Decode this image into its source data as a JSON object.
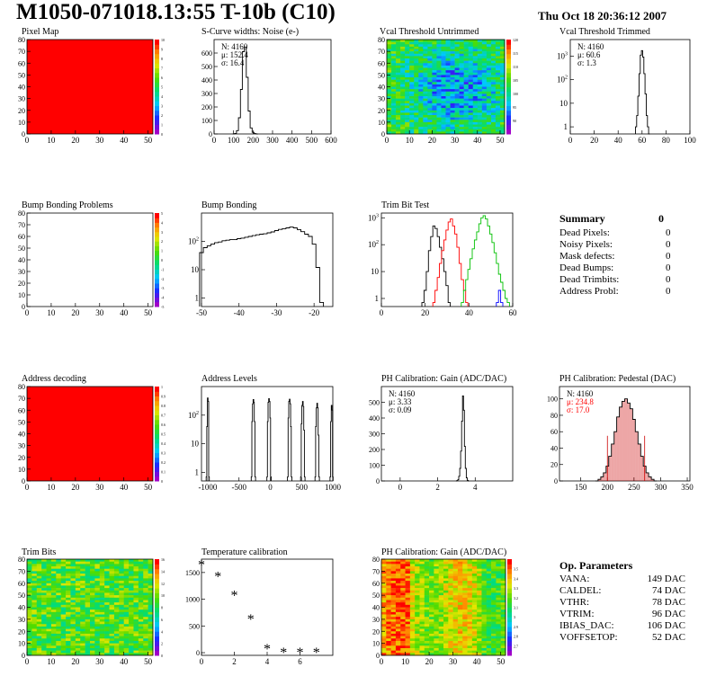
{
  "header": {
    "title": "M1050-071018.13:55 T-10b (C10)",
    "date": "Thu Oct 18 20:36:12 2007"
  },
  "summary": {
    "title": "Summary",
    "title_value": "0",
    "rows": [
      {
        "label": "Dead Pixels:",
        "value": "0"
      },
      {
        "label": "Noisy Pixels:",
        "value": "0"
      },
      {
        "label": "Mask defects:",
        "value": "0"
      },
      {
        "label": "Dead Bumps:",
        "value": "0"
      },
      {
        "label": "Dead Trimbits:",
        "value": "0"
      },
      {
        "label": "Address Probl:",
        "value": "0"
      }
    ]
  },
  "op_parameters": {
    "title": "Op. Parameters",
    "rows": [
      {
        "label": "VANA:",
        "value": "149 DAC"
      },
      {
        "label": "CALDEL:",
        "value": "74 DAC"
      },
      {
        "label": "VTHR:",
        "value": "78 DAC"
      },
      {
        "label": "VTRIM:",
        "value": "96 DAC"
      },
      {
        "label": "IBIAS_DAC:",
        "value": "106 DAC"
      },
      {
        "label": "VOFFSETOP:",
        "value": "52 DAC"
      }
    ]
  },
  "chart_data": [
    {
      "id": "pixel-map",
      "type": "heatmap",
      "title": "Pixel Map",
      "xlim": [
        0,
        52
      ],
      "ylim": [
        0,
        80
      ],
      "xticks": [
        0,
        10,
        20,
        30,
        40,
        50
      ],
      "yticks": [
        0,
        10,
        20,
        30,
        40,
        50,
        60,
        70,
        80
      ],
      "fill": "uniform-max",
      "zlim": [
        0,
        10
      ],
      "zticks": [
        0,
        1,
        2,
        3,
        4,
        5,
        6,
        7,
        8,
        9,
        10
      ],
      "palette": "rainbow"
    },
    {
      "id": "scurve-widths",
      "type": "histogram",
      "title": "S-Curve widths: Noise (e-)",
      "xlim": [
        0,
        600
      ],
      "ylim": [
        0,
        700
      ],
      "xticks": [
        0,
        100,
        200,
        300,
        400,
        500,
        600
      ],
      "yticks": [
        0,
        100,
        200,
        300,
        400,
        500,
        600
      ],
      "stats": [
        "N: 4160",
        "μ: 152.4",
        "σ: 16.4"
      ],
      "color": "#000000",
      "x": [
        100,
        110,
        120,
        130,
        140,
        150,
        160,
        170,
        180,
        190,
        200,
        210,
        220
      ],
      "values": [
        0,
        4,
        25,
        120,
        330,
        610,
        645,
        420,
        170,
        45,
        12,
        3,
        0
      ]
    },
    {
      "id": "vcal-untrimmed",
      "type": "heatmap",
      "title": "Vcal Threshold Untrimmed",
      "xlim": [
        0,
        52
      ],
      "ylim": [
        0,
        80
      ],
      "xticks": [
        0,
        10,
        20,
        30,
        40,
        50
      ],
      "yticks": [
        0,
        10,
        20,
        30,
        40,
        50,
        60,
        70,
        80
      ],
      "fill": "noise-untrimmed",
      "zlim": [
        85,
        120
      ],
      "zticks": [
        90,
        95,
        100,
        105,
        110,
        115,
        120
      ],
      "palette": "rainbow"
    },
    {
      "id": "vcal-trimmed",
      "type": "histogram",
      "title": "Vcal Threshold Trimmed",
      "log_y": true,
      "xlim": [
        0,
        100
      ],
      "ylim": [
        0.5,
        5000
      ],
      "xticks": [
        0,
        20,
        40,
        60,
        80,
        100
      ],
      "yticks_log": [
        1,
        10,
        100,
        1000
      ],
      "stats": [
        "N: 4160",
        "μ: 60.6",
        "σ: 1.3"
      ],
      "color": "#000000",
      "x": [
        55,
        56,
        57,
        58,
        59,
        60,
        61,
        62,
        63,
        64,
        65,
        66
      ],
      "values": [
        1,
        3,
        20,
        180,
        1100,
        1700,
        900,
        180,
        25,
        3,
        1,
        0
      ]
    },
    {
      "id": "bump-problems",
      "type": "heatmap",
      "title": "Bump Bonding Problems",
      "xlim": [
        0,
        52
      ],
      "ylim": [
        0,
        80
      ],
      "xticks": [
        0,
        10,
        20,
        30,
        40,
        50
      ],
      "yticks": [
        0,
        10,
        20,
        30,
        40,
        50,
        60,
        70,
        80
      ],
      "fill": "empty",
      "zlim": [
        -5,
        5
      ],
      "zticks": [
        -5,
        -4,
        -3,
        -2,
        -1,
        0,
        1,
        2,
        3,
        4,
        5
      ],
      "palette": "rainbow"
    },
    {
      "id": "bump-bonding",
      "type": "histogram",
      "title": "Bump Bonding",
      "log_y": true,
      "xlim": [
        -50,
        -15
      ],
      "ylim": [
        0.5,
        1000
      ],
      "xticks": [
        -50,
        -40,
        -30,
        -20
      ],
      "yticks_log": [
        1,
        10,
        100
      ],
      "color": "#000000",
      "x": [
        -50,
        -49,
        -48,
        -47,
        -46,
        -45,
        -44,
        -43,
        -42,
        -41,
        -40,
        -39,
        -38,
        -37,
        -36,
        -35,
        -34,
        -33,
        -32,
        -31,
        -30,
        -29,
        -28,
        -27,
        -26,
        -25,
        -24,
        -23,
        -22,
        -21,
        -20,
        -19,
        -18
      ],
      "values": [
        40,
        60,
        70,
        80,
        90,
        95,
        105,
        110,
        115,
        115,
        125,
        130,
        140,
        150,
        160,
        170,
        180,
        185,
        200,
        215,
        240,
        265,
        280,
        300,
        320,
        300,
        260,
        220,
        180,
        150,
        80,
        12,
        0.7
      ]
    },
    {
      "id": "trim-bit-test",
      "type": "histogram",
      "title": "Trim Bit Test",
      "log_y": true,
      "xlim": [
        0,
        60
      ],
      "ylim": [
        0.5,
        1500
      ],
      "xticks": [
        0,
        20,
        40,
        60
      ],
      "yticks_log": [
        1,
        10,
        100,
        1000
      ],
      "series": [
        {
          "color": "#000000",
          "x": [
            19,
            20,
            21,
            22,
            23,
            24,
            25,
            26,
            27,
            28,
            29,
            30,
            31
          ],
          "values": [
            0.7,
            2,
            10,
            60,
            200,
            500,
            400,
            200,
            80,
            30,
            10,
            3,
            0.7
          ]
        },
        {
          "color": "#ff0000",
          "x": [
            24,
            25,
            26,
            27,
            28,
            29,
            30,
            31,
            32,
            33,
            34,
            35,
            36,
            37,
            38,
            39
          ],
          "values": [
            0.7,
            2,
            6,
            20,
            60,
            150,
            350,
            700,
            900,
            500,
            250,
            80,
            20,
            5,
            2,
            0.7
          ]
        },
        {
          "color": "#00c000",
          "x": [
            37,
            38,
            39,
            40,
            41,
            42,
            43,
            44,
            45,
            46,
            47,
            48,
            49,
            50,
            51,
            52,
            53,
            54,
            55,
            56,
            57,
            58
          ],
          "values": [
            0.7,
            2,
            5,
            12,
            30,
            70,
            150,
            300,
            600,
            1000,
            1200,
            900,
            500,
            250,
            120,
            50,
            20,
            8,
            4,
            2,
            1,
            0.7
          ]
        },
        {
          "color": "#0000ff",
          "x": [
            53,
            54,
            55
          ],
          "values": [
            0.7,
            2,
            0.7
          ]
        }
      ]
    },
    {
      "id": "address-decoding",
      "type": "heatmap",
      "title": "Address decoding",
      "xlim": [
        0,
        52
      ],
      "ylim": [
        0,
        80
      ],
      "xticks": [
        0,
        10,
        20,
        30,
        40,
        50
      ],
      "yticks": [
        0,
        10,
        20,
        30,
        40,
        50,
        60,
        70,
        80
      ],
      "fill": "uniform-max",
      "zlim": [
        0,
        1
      ],
      "zticks": [
        0,
        0.1,
        0.2,
        0.3,
        0.4,
        0.5,
        0.6,
        0.7,
        0.8,
        0.9,
        1
      ],
      "palette": "rainbow"
    },
    {
      "id": "address-levels",
      "type": "histogram",
      "title": "Address Levels",
      "log_y": true,
      "xlim": [
        -1100,
        1000
      ],
      "ylim": [
        0.5,
        1000
      ],
      "xticks": [
        -1000,
        -500,
        0,
        500,
        1000
      ],
      "yticks_log": [
        1,
        10,
        100
      ],
      "color": "#000000",
      "peaks": [
        {
          "x": [
            -1020,
            -1010,
            -1000,
            -990,
            -980
          ],
          "values": [
            0.7,
            40,
            400,
            300,
            0.7
          ]
        },
        {
          "x": [
            -300,
            -290,
            -280,
            -270,
            -260,
            -250,
            -240
          ],
          "values": [
            0.7,
            60,
            250,
            350,
            280,
            60,
            0.7
          ]
        },
        {
          "x": [
            -50,
            -40,
            -30,
            -20,
            -10,
            0,
            10
          ],
          "values": [
            0.7,
            60,
            280,
            380,
            300,
            80,
            0.7
          ]
        },
        {
          "x": [
            280,
            290,
            300,
            310,
            320,
            330,
            340
          ],
          "values": [
            0.7,
            80,
            300,
            360,
            250,
            40,
            0.7
          ]
        },
        {
          "x": [
            490,
            500,
            510,
            520,
            530,
            540,
            550
          ],
          "values": [
            0.7,
            50,
            220,
            300,
            200,
            30,
            0.7
          ]
        },
        {
          "x": [
            720,
            730,
            740,
            750,
            760,
            770,
            780
          ],
          "values": [
            0.7,
            40,
            180,
            260,
            180,
            20,
            0.7
          ]
        },
        {
          "x": [
            960,
            970,
            980,
            990,
            1000
          ],
          "values": [
            0.7,
            60,
            220,
            150,
            0.7
          ]
        }
      ]
    },
    {
      "id": "ph-gain",
      "type": "histogram",
      "title": "PH Calibration: Gain (ADC/DAC)",
      "xlim": [
        -1,
        6
      ],
      "ylim": [
        0,
        600
      ],
      "xticks": [
        0,
        2,
        4
      ],
      "yticks": [
        0,
        100,
        200,
        300,
        400,
        500
      ],
      "stats": [
        "N: 4160",
        "μ: 3.33",
        "σ: 0.09"
      ],
      "color": "#000000",
      "x": [
        3.0,
        3.05,
        3.1,
        3.15,
        3.2,
        3.25,
        3.3,
        3.35,
        3.4,
        3.45,
        3.5,
        3.55,
        3.6,
        3.65
      ],
      "values": [
        0,
        2,
        8,
        30,
        80,
        190,
        380,
        540,
        450,
        220,
        80,
        20,
        4,
        0
      ]
    },
    {
      "id": "ph-pedestal",
      "type": "histogram",
      "title": "PH Calibration: Pedestal (DAC)",
      "xlim": [
        110,
        355
      ],
      "ylim": [
        0,
        115
      ],
      "xticks": [
        150,
        200,
        250,
        300,
        350
      ],
      "yticks": [
        0,
        20,
        40,
        60,
        80,
        100
      ],
      "stats": [
        "N: 4160",
        "μ: 234.8",
        "σ: 17.0"
      ],
      "stats_colors": [
        "#000000",
        "#ff0000",
        "#ff0000"
      ],
      "color": "#000000",
      "fill_color": "#cc0000",
      "cut_lines": [
        200,
        270
      ],
      "x": [
        180,
        185,
        190,
        195,
        200,
        205,
        210,
        215,
        220,
        225,
        230,
        235,
        240,
        245,
        250,
        255,
        260,
        265,
        270,
        275,
        280,
        285,
        290
      ],
      "values": [
        0,
        2,
        5,
        10,
        18,
        30,
        45,
        60,
        78,
        90,
        97,
        100,
        95,
        88,
        75,
        60,
        45,
        30,
        18,
        10,
        5,
        2,
        0
      ]
    },
    {
      "id": "trim-bits",
      "type": "heatmap",
      "title": "Trim Bits",
      "xlim": [
        0,
        52
      ],
      "ylim": [
        0,
        80
      ],
      "xticks": [
        0,
        10,
        20,
        30,
        40,
        50
      ],
      "yticks": [
        0,
        10,
        20,
        30,
        40,
        50,
        60,
        70,
        80
      ],
      "fill": "noise-trim",
      "zlim": [
        0,
        16
      ],
      "zticks": [
        0,
        2,
        4,
        6,
        8,
        10,
        12,
        14,
        16
      ],
      "palette": "rainbow"
    },
    {
      "id": "temperature-calibration",
      "type": "scatter",
      "title": "Temperature calibration",
      "xlim": [
        0,
        8
      ],
      "ylim": [
        -50,
        1750
      ],
      "xticks": [
        0,
        2,
        4,
        6
      ],
      "yticks": [
        0,
        500,
        1000,
        1500
      ],
      "x": [
        0,
        1,
        2,
        3,
        4,
        5,
        6,
        7
      ],
      "values": [
        1640,
        1420,
        1070,
        620,
        70,
        0,
        0,
        0
      ]
    },
    {
      "id": "ph-gain-map",
      "type": "heatmap",
      "title": "PH Calibration: Gain (ADC/DAC)",
      "xlim": [
        0,
        52
      ],
      "ylim": [
        0,
        80
      ],
      "xticks": [
        0,
        10,
        20,
        30,
        40,
        50
      ],
      "yticks": [
        0,
        10,
        20,
        30,
        40,
        50,
        60,
        70,
        80
      ],
      "fill": "noise-gain",
      "zlim": [
        2.6,
        3.6
      ],
      "zticks": [
        2.7,
        2.8,
        2.9,
        3,
        3.1,
        3.2,
        3.3,
        3.4,
        3.5
      ],
      "palette": "rainbow"
    }
  ]
}
